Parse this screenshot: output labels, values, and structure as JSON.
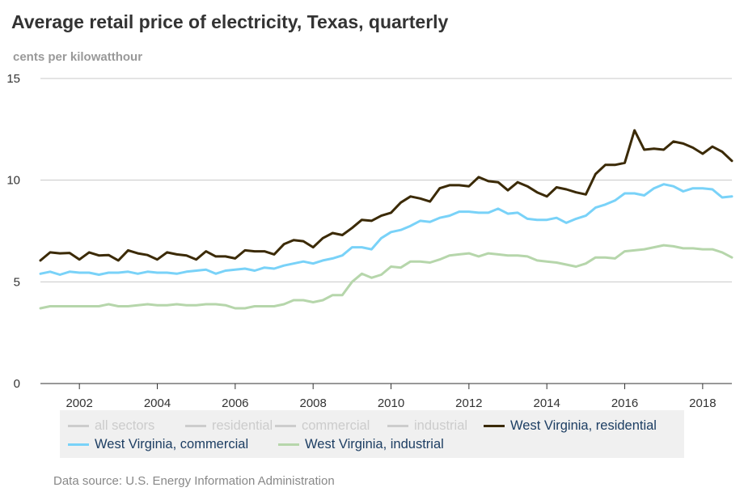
{
  "title": "Average retail price of electricity, Texas, quarterly",
  "source": "Data source: U.S. Energy Information Administration",
  "colors": {
    "wv_residential": "#3b2a06",
    "wv_commercial": "#79d2f8",
    "wv_industrial": "#b6d6ab",
    "disabled": "#cccccc",
    "legend_bg": "#f0f0f0"
  },
  "legend": [
    {
      "label": "all sectors",
      "color": "#cccccc",
      "enabled": false
    },
    {
      "label": "residential",
      "color": "#cccccc",
      "enabled": false
    },
    {
      "label": "commercial",
      "color": "#cccccc",
      "enabled": false
    },
    {
      "label": "industrial",
      "color": "#cccccc",
      "enabled": false
    },
    {
      "label": "West Virginia, residential",
      "color": "#3b2a06",
      "enabled": true
    },
    {
      "label": "West Virginia, commercial",
      "color": "#79d2f8",
      "enabled": true
    },
    {
      "label": "West Virginia, industrial",
      "color": "#b6d6ab",
      "enabled": true
    }
  ],
  "chart_data": {
    "type": "line",
    "title": "Average retail price of electricity, Texas, quarterly",
    "ylabel": "cents per kilowatthour",
    "xlabel": "",
    "ylim": [
      0,
      15
    ],
    "yticks": [
      0,
      5,
      10,
      15
    ],
    "xlim": [
      2001.0,
      2018.75
    ],
    "xticks": [
      2002,
      2004,
      2006,
      2008,
      2010,
      2012,
      2014,
      2016,
      2018
    ],
    "grid": true,
    "legend_position": "bottom",
    "x_start": 2001.0,
    "x_step": 0.25,
    "series": [
      {
        "name": "West Virginia, residential",
        "color": "#3b2a06",
        "values": [
          6.05,
          6.45,
          6.4,
          6.42,
          6.1,
          6.45,
          6.3,
          6.32,
          6.05,
          6.55,
          6.4,
          6.32,
          6.1,
          6.45,
          6.35,
          6.3,
          6.1,
          6.5,
          6.25,
          6.25,
          6.15,
          6.55,
          6.5,
          6.5,
          6.35,
          6.85,
          7.05,
          7.0,
          6.7,
          7.15,
          7.4,
          7.3,
          7.65,
          8.05,
          8.0,
          8.25,
          8.4,
          8.9,
          9.2,
          9.1,
          8.95,
          9.6,
          9.75,
          9.75,
          9.7,
          10.15,
          9.95,
          9.9,
          9.5,
          9.9,
          9.7,
          9.4,
          9.2,
          9.65,
          9.55,
          9.4,
          9.3,
          10.3,
          10.75,
          10.75,
          10.85,
          12.45,
          11.5,
          11.55,
          11.5,
          11.9,
          11.8,
          11.6,
          11.3,
          11.65,
          11.4,
          10.95
        ]
      },
      {
        "name": "West Virginia, commercial",
        "color": "#79d2f8",
        "values": [
          5.4,
          5.5,
          5.35,
          5.5,
          5.45,
          5.45,
          5.35,
          5.45,
          5.45,
          5.5,
          5.4,
          5.5,
          5.45,
          5.45,
          5.4,
          5.5,
          5.55,
          5.6,
          5.4,
          5.55,
          5.6,
          5.65,
          5.55,
          5.7,
          5.65,
          5.8,
          5.9,
          6.0,
          5.9,
          6.05,
          6.15,
          6.3,
          6.7,
          6.7,
          6.6,
          7.15,
          7.45,
          7.55,
          7.75,
          8.0,
          7.95,
          8.15,
          8.25,
          8.45,
          8.45,
          8.4,
          8.4,
          8.6,
          8.35,
          8.4,
          8.1,
          8.05,
          8.05,
          8.15,
          7.9,
          8.1,
          8.25,
          8.65,
          8.8,
          9.0,
          9.35,
          9.35,
          9.25,
          9.6,
          9.8,
          9.7,
          9.45,
          9.6,
          9.6,
          9.55,
          9.15,
          9.2
        ]
      },
      {
        "name": "West Virginia, industrial",
        "color": "#b6d6ab",
        "values": [
          3.7,
          3.8,
          3.8,
          3.8,
          3.8,
          3.8,
          3.8,
          3.9,
          3.8,
          3.8,
          3.85,
          3.9,
          3.85,
          3.85,
          3.9,
          3.85,
          3.85,
          3.9,
          3.9,
          3.85,
          3.7,
          3.7,
          3.8,
          3.8,
          3.8,
          3.9,
          4.1,
          4.1,
          4.0,
          4.1,
          4.35,
          4.35,
          5.0,
          5.4,
          5.2,
          5.35,
          5.75,
          5.7,
          6.0,
          6.0,
          5.95,
          6.1,
          6.3,
          6.35,
          6.4,
          6.25,
          6.4,
          6.35,
          6.3,
          6.3,
          6.25,
          6.05,
          6.0,
          5.95,
          5.85,
          5.75,
          5.9,
          6.2,
          6.2,
          6.15,
          6.5,
          6.55,
          6.6,
          6.7,
          6.8,
          6.75,
          6.65,
          6.65,
          6.6,
          6.6,
          6.45,
          6.2
        ]
      }
    ]
  }
}
